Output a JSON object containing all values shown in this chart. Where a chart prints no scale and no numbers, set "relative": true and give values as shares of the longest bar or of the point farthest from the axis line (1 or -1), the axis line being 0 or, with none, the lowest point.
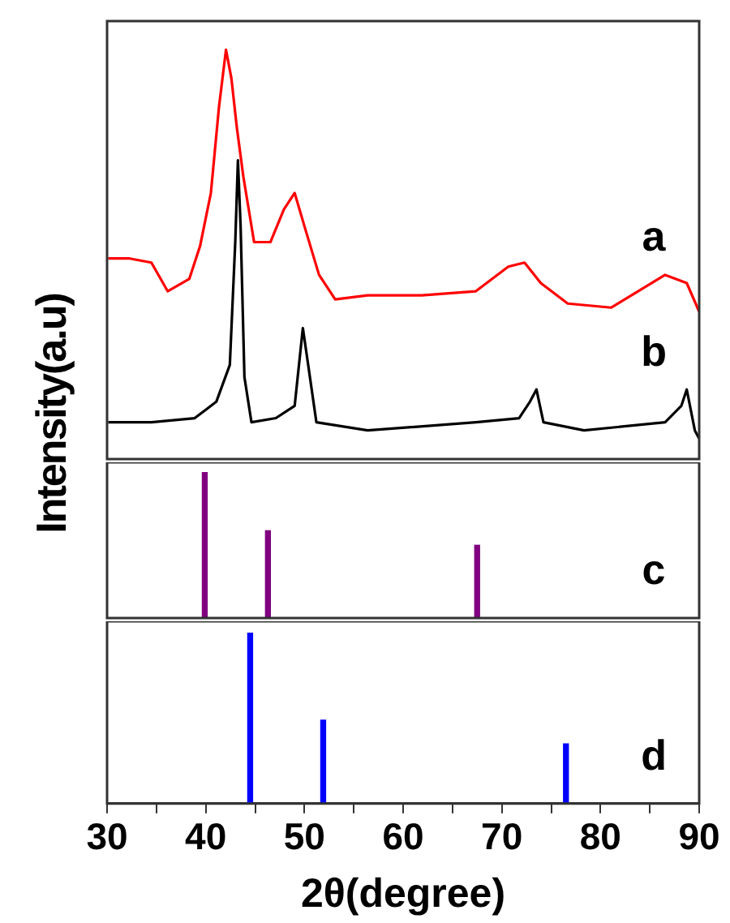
{
  "chart_data": [
    {
      "type": "line",
      "ylabel": "Intensity(a.u)",
      "relative": true,
      "xlim": [
        30,
        90
      ],
      "tick_labels": false,
      "series": [
        {
          "name": "a",
          "color": "#ff0000",
          "x": [
            30.11,
            32.3,
            34.49,
            36.14,
            38.33,
            39.42,
            40.52,
            41.34,
            42.05,
            42.6,
            43.15,
            43.81,
            44.9,
            46.55,
            47.92,
            49.01,
            50.11,
            51.48,
            53.12,
            56.41,
            61.89,
            67.37,
            70.66,
            72.3,
            73.95,
            76.68,
            81.07,
            83.81,
            86.55,
            88.74,
            90
          ],
          "values": [
            0.49,
            0.49,
            0.48,
            0.41,
            0.44,
            0.52,
            0.65,
            0.86,
            1,
            0.93,
            0.81,
            0.69,
            0.53,
            0.53,
            0.61,
            0.65,
            0.56,
            0.45,
            0.39,
            0.4,
            0.4,
            0.41,
            0.47,
            0.48,
            0.43,
            0.38,
            0.37,
            0.41,
            0.45,
            0.43,
            0.36
          ]
        },
        {
          "name": "b",
          "color": "#000000",
          "x": [
            30.11,
            34.49,
            38.88,
            41.07,
            42.44,
            42.99,
            43.26,
            43.53,
            43.92,
            44.63,
            47.1,
            49.01,
            49.84,
            50.38,
            51.21,
            56.41,
            67.37,
            71.75,
            72.85,
            73.51,
            74.22,
            78.33,
            86.55,
            88.19,
            88.74,
            89.56,
            90
          ],
          "values": [
            0.09,
            0.09,
            0.1,
            0.14,
            0.23,
            0.53,
            0.73,
            0.57,
            0.2,
            0.09,
            0.1,
            0.13,
            0.32,
            0.23,
            0.09,
            0.07,
            0.09,
            0.1,
            0.14,
            0.17,
            0.09,
            0.07,
            0.09,
            0.13,
            0.17,
            0.07,
            0.05
          ]
        }
      ]
    },
    {
      "type": "bar",
      "relative": true,
      "xlim": [
        30,
        90
      ],
      "tick_labels": false,
      "series": [
        {
          "name": "c",
          "color": "#800080",
          "x": [
            39.9,
            46.3,
            67.5
          ],
          "values": [
            1,
            0.6,
            0.5
          ]
        }
      ]
    },
    {
      "type": "bar",
      "relative": true,
      "xlim": [
        30,
        90
      ],
      "xlabel": "2θ(degree)",
      "tick_labels": "x",
      "xticks": [
        30,
        {
          "value": 35,
          "label": null
        },
        40,
        {
          "value": 45,
          "label": null
        },
        50,
        {
          "value": 55,
          "label": null
        },
        60,
        {
          "value": 65,
          "label": null
        },
        70,
        {
          "value": 75,
          "label": null
        },
        80,
        {
          "value": 85,
          "label": null
        },
        90
      ],
      "series": [
        {
          "name": "d",
          "color": "#0000ff",
          "x": [
            44.5,
            51.9,
            76.5
          ],
          "values": [
            1,
            0.49,
            0.35
          ]
        }
      ]
    }
  ]
}
